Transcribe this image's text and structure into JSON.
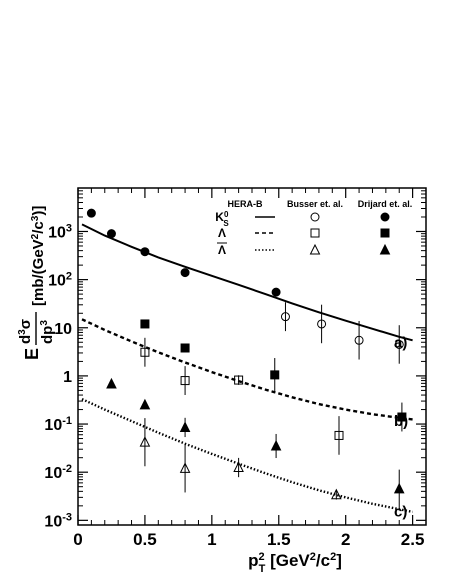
{
  "chart_data": {
    "type": "scatter",
    "x_axis": {
      "label_main": "p",
      "label_sup": "2",
      "label_sub": "T",
      "label_unit": " [GeV",
      "label_unit_sup": "2",
      "label_unit_end": "/c",
      "label_unit_sup2": "2",
      "label_close": "]",
      "range": [
        0,
        2.6
      ],
      "ticks": [
        0,
        0.5,
        1,
        1.5,
        2,
        2.5
      ],
      "tick_labels": [
        "0",
        "0.5",
        "1",
        "1.5",
        "2",
        "2.5"
      ]
    },
    "y_axis": {
      "scale": "log",
      "range": [
        0.0008,
        8000
      ],
      "ticks": [
        0.001,
        0.01,
        0.1,
        1,
        10,
        100,
        1000
      ],
      "tick_labels": [
        {
          "base": "10",
          "exp": "-3"
        },
        {
          "base": "10",
          "exp": "-2"
        },
        {
          "base": "10",
          "exp": "-1"
        },
        {
          "base": "1",
          "exp": ""
        },
        {
          "base": "10",
          "exp": ""
        },
        {
          "base": "10",
          "exp": "2"
        },
        {
          "base": "10",
          "exp": "3"
        }
      ],
      "label_E": "E",
      "label_num": "d",
      "label_num_sup": "3",
      "label_num_sym": "σ",
      "label_den": "dp",
      "label_den_sup": "3",
      "label_unit": "[mb/(GeV",
      "label_unit_sup": "2",
      "label_unit_mid": "/c",
      "label_unit_sup2": "3",
      "label_unit_end": ")]"
    },
    "legend": {
      "columns": [
        "HERA-B",
        "Busser et. al.",
        "Drijard et. al."
      ],
      "rows": [
        {
          "particle": "K",
          "particle_sup": "0",
          "particle_sub": "S",
          "line": "solid"
        },
        {
          "particle": "Λ",
          "particle_bar": false,
          "line": "dashed"
        },
        {
          "particle": "Λ",
          "particle_bar": true,
          "line": "dotted"
        }
      ],
      "placement": "top-right"
    },
    "curves": [
      {
        "label": "a)",
        "style": "solid",
        "x": [
          0.03,
          0.2,
          0.4,
          0.6,
          0.8,
          1.0,
          1.2,
          1.4,
          1.6,
          1.8,
          2.0,
          2.2,
          2.4,
          2.5
        ],
        "y": [
          1400,
          820,
          480,
          290,
          185,
          120,
          78,
          50,
          32,
          21,
          14,
          9.5,
          6.5,
          5.5
        ]
      },
      {
        "label": "b)",
        "style": "dashed",
        "x": [
          0.03,
          0.2,
          0.4,
          0.6,
          0.8,
          1.0,
          1.2,
          1.4,
          1.6,
          1.8,
          2.0,
          2.2,
          2.4,
          2.5
        ],
        "y": [
          15,
          9,
          5.2,
          3.1,
          1.9,
          1.2,
          0.78,
          0.52,
          0.36,
          0.26,
          0.2,
          0.16,
          0.135,
          0.125
        ]
      },
      {
        "label": "c)",
        "style": "dotted",
        "x": [
          0.03,
          0.2,
          0.4,
          0.6,
          0.8,
          1.0,
          1.2,
          1.4,
          1.6,
          1.8,
          2.0,
          2.2,
          2.4,
          2.5
        ],
        "y": [
          0.33,
          0.2,
          0.115,
          0.066,
          0.039,
          0.024,
          0.015,
          0.0095,
          0.0062,
          0.0042,
          0.003,
          0.0022,
          0.0017,
          0.0015
        ]
      }
    ],
    "series": [
      {
        "name": "K0S Drijard",
        "marker": "circle",
        "filled": true,
        "points": [
          [
            0.1,
            2400,
            0
          ],
          [
            0.25,
            900,
            0
          ],
          [
            0.5,
            380,
            0
          ],
          [
            0.8,
            140,
            0
          ],
          [
            1.48,
            55,
            0
          ]
        ]
      },
      {
        "name": "K0S Busser",
        "marker": "circle",
        "filled": false,
        "points": [
          [
            1.55,
            17,
            0.3
          ],
          [
            1.82,
            12,
            0.4
          ],
          [
            2.1,
            5.5,
            0.4
          ],
          [
            2.4,
            4.5,
            0.4
          ]
        ]
      },
      {
        "name": "Lambda Drijard",
        "marker": "square",
        "filled": true,
        "points": [
          [
            0.5,
            12,
            0
          ],
          [
            0.8,
            3.8,
            0
          ],
          [
            1.47,
            1.05,
            0.35
          ],
          [
            2.42,
            0.14,
            0.3
          ]
        ]
      },
      {
        "name": "Lambda Busser",
        "marker": "square",
        "filled": false,
        "points": [
          [
            0.5,
            3.1,
            0.3
          ],
          [
            0.8,
            0.8,
            0.3
          ],
          [
            1.2,
            0.82,
            0.1
          ],
          [
            1.95,
            0.058,
            0.4
          ]
        ]
      },
      {
        "name": "AntiLambda Drijard",
        "marker": "triangle",
        "filled": true,
        "points": [
          [
            0.25,
            0.68,
            0
          ],
          [
            0.5,
            0.25,
            0
          ],
          [
            0.8,
            0.085,
            0.2
          ],
          [
            1.48,
            0.035,
            0.25
          ],
          [
            2.4,
            0.0045,
            0.4
          ]
        ]
      },
      {
        "name": "AntiLambda Busser",
        "marker": "triangle",
        "filled": false,
        "points": [
          [
            0.5,
            0.042,
            0.5
          ],
          [
            0.8,
            0.012,
            0.5
          ],
          [
            1.2,
            0.0125,
            0.2
          ],
          [
            1.93,
            0.0034,
            0.1
          ]
        ]
      }
    ]
  }
}
